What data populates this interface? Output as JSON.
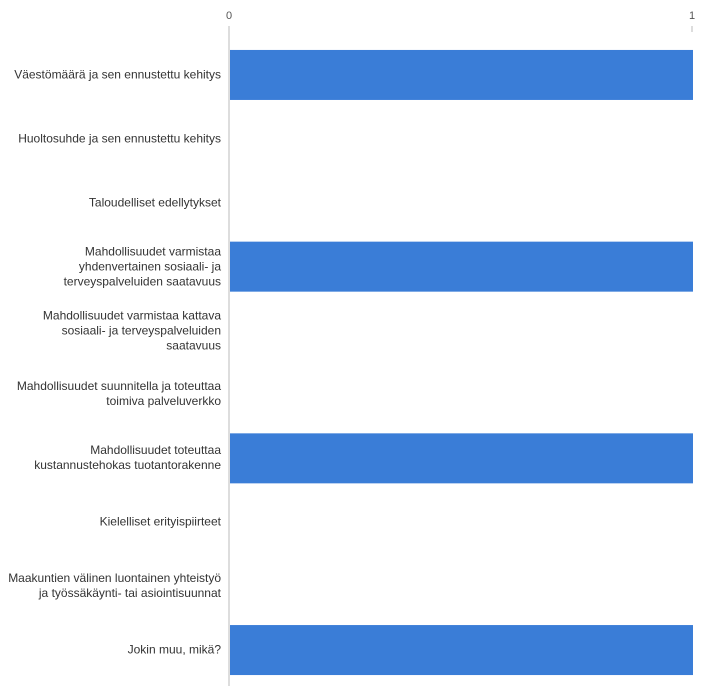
{
  "chart_data": {
    "type": "barh",
    "categories": [
      "Väestömäärä ja sen ennustettu kehitys",
      "Huoltosuhde ja sen ennustettu kehitys",
      "Taloudelliset edellytykset",
      "Mahdollisuudet varmistaa yhdenvertainen sosiaali- ja terveyspalveluiden saatavuus",
      "Mahdollisuudet varmistaa kattava sosiaali- ja terveyspalveluiden saatavuus",
      "Mahdollisuudet suunnitella ja toteuttaa toimiva palveluverkko",
      "Mahdollisuudet toteuttaa kustannustehokas tuotantorakenne",
      "Kielelliset erityispiirteet",
      "Maakuntien välinen luontainen yhteistyö ja työssäkäynti- tai asiointisuunnat",
      "Jokin muu, mikä?"
    ],
    "values": [
      1,
      0,
      0,
      1,
      0,
      0,
      1,
      0,
      0,
      1
    ],
    "color": "#3a7dd7",
    "xlim": [
      0,
      1
    ],
    "xticks": [
      0,
      1
    ]
  }
}
